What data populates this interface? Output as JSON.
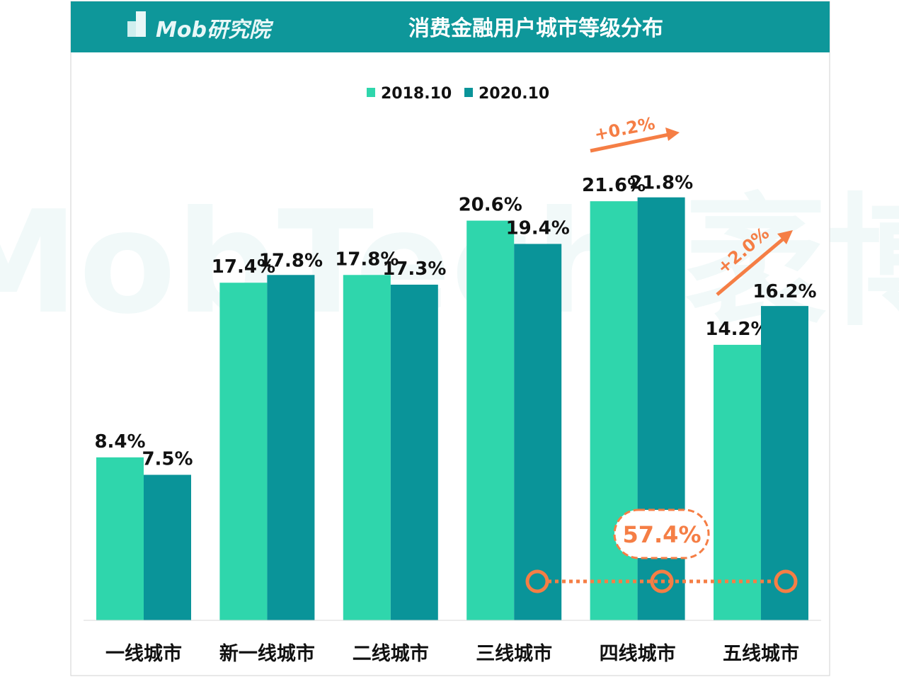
{
  "header": {
    "title": "消费金融用户城市等级分布",
    "logo_text": "Mob研究院"
  },
  "watermark": "MobTech 袤博",
  "colors": {
    "header_bg": "#0e979a",
    "series_2018": "#2fd6ac",
    "series_2020": "#0a9499",
    "accent": "#f57e45"
  },
  "chart_data": {
    "type": "bar",
    "title": "消费金融用户城市等级分布",
    "categories": [
      "一线城市",
      "新一线城市",
      "二线城市",
      "三线城市",
      "四线城市",
      "五线城市"
    ],
    "series": [
      {
        "name": "2018.10",
        "values": [
          8.4,
          17.4,
          17.8,
          20.6,
          21.6,
          14.2
        ],
        "labels": [
          "8.4%",
          "17.4%",
          "17.8%",
          "20.6%",
          "21.6%",
          "14.2%"
        ]
      },
      {
        "name": "2020.10",
        "values": [
          7.5,
          17.8,
          17.3,
          19.4,
          21.8,
          16.2
        ],
        "labels": [
          "7.5%",
          "17.8%",
          "17.3%",
          "19.4%",
          "21.8%",
          "16.2%"
        ]
      }
    ],
    "ylim": [
      0,
      22
    ],
    "legend_position": "top-center",
    "grid": false,
    "annotations": [
      {
        "text": "+0.2%",
        "category": "四线城市"
      },
      {
        "text": "+2.0%",
        "category": "五线城市"
      },
      {
        "text": "57.4%",
        "note_span": [
          "三线城市",
          "四线城市",
          "五线城市"
        ]
      }
    ]
  }
}
